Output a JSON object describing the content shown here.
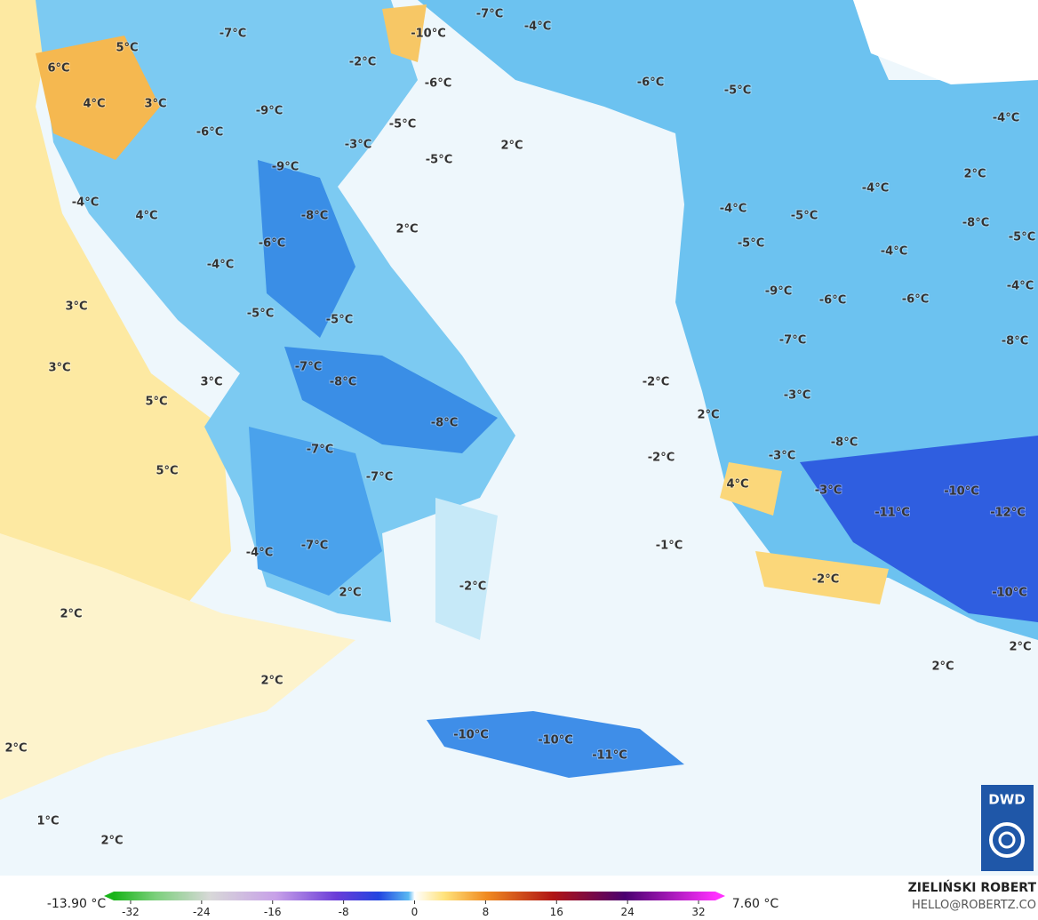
{
  "map": {
    "labels": [
      "-7°C",
      "-4°C",
      "-10°C",
      "-7°C",
      "5°C",
      "6°C",
      "-2°C",
      "-6°C",
      "-6°C",
      "-5°C",
      "4°C",
      "3°C",
      "-9°C",
      "-4°C",
      "-5°C",
      "-6°C",
      "-3°C",
      "2°C",
      "-5°C",
      "-9°C",
      "2°C",
      "-4°C",
      "-4°C",
      "-4°C",
      "4°C",
      "-8°C",
      "-5°C",
      "-8°C",
      "2°C",
      "-6°C",
      "-5°C",
      "-5°C",
      "-4°C",
      "-4°C",
      "-4°C",
      "-9°C",
      "-6°C",
      "-6°C",
      "3°C",
      "-5°C",
      "-5°C",
      "-7°C",
      "-8°C",
      "3°C",
      "-7°C",
      "-8°C",
      "3°C",
      "-2°C",
      "-3°C",
      "5°C",
      "2°C",
      "-8°C",
      "-8°C",
      "-7°C",
      "-2°C",
      "-3°C",
      "5°C",
      "-7°C",
      "4°C",
      "-3°C",
      "-10°C",
      "-11°C",
      "-12°C",
      "-1°C",
      "-7°C",
      "-4°C",
      "-2°C",
      "-2°C",
      "2°C",
      "-10°C",
      "2°C",
      "2°C",
      "2°C",
      "2°C",
      "-10°C",
      "-10°C",
      "-11°C",
      "2°C",
      "1°C",
      "2°C"
    ],
    "colorbar": {
      "min_label": "-13.90 °C",
      "max_label": "7.60 °C",
      "lim": [
        -35,
        35
      ],
      "ticks": [
        -32,
        -24,
        -16,
        -8,
        0,
        8,
        16,
        24,
        32
      ]
    },
    "credit": {
      "author": "ZIELIŃSKI ROBERT",
      "contact": "HELLO@ROBERTZ.CO"
    },
    "logo": "DWD"
  }
}
